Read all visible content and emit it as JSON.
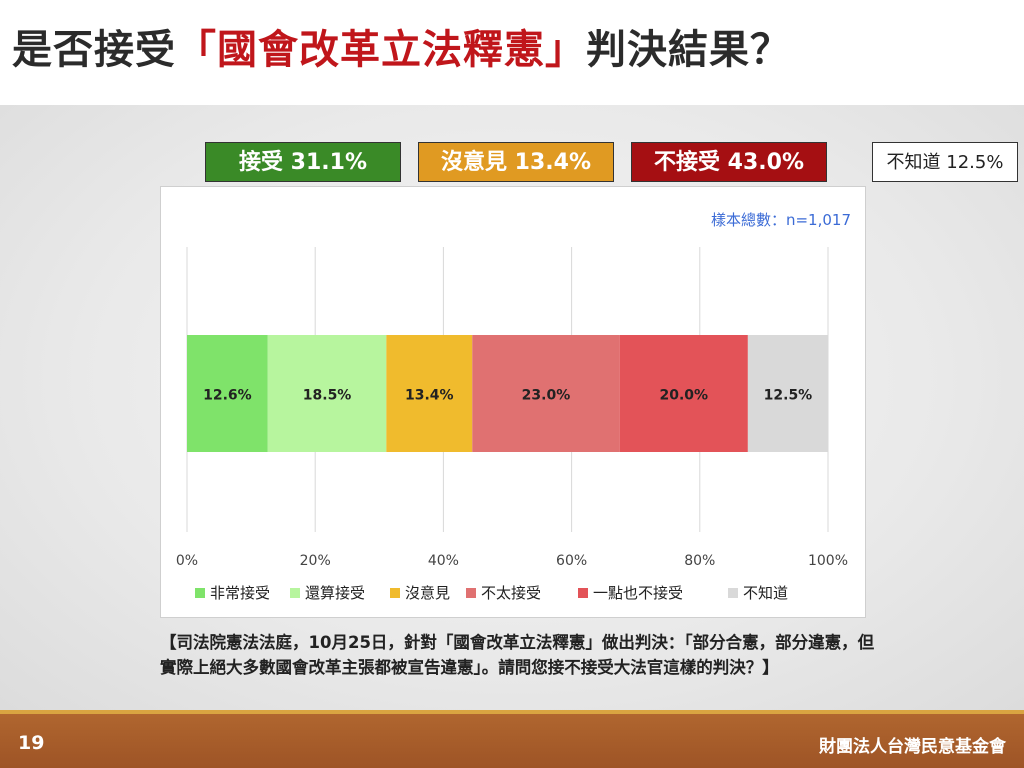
{
  "title": {
    "prefix": "是否接受",
    "highlight": "「國會改革立法釋憲」",
    "suffix": "判決結果？"
  },
  "summary": [
    {
      "label": "接受 31.1%",
      "color": "#3a8a27"
    },
    {
      "label": "沒意見 13.4%",
      "color": "#e09a22"
    },
    {
      "label": "不接受 43.0%",
      "color": "#a50f12"
    },
    {
      "label": "不知道 12.5%",
      "color": "#ffffff"
    }
  ],
  "chart_data": {
    "type": "bar",
    "orientation": "horizontal",
    "stacked": true,
    "note": "樣本總數：n=1,017",
    "xlim": [
      0,
      100
    ],
    "ticks": [
      "0%",
      "20%",
      "40%",
      "60%",
      "80%",
      "100%"
    ],
    "grid": true,
    "legend_position": "bottom",
    "series": [
      {
        "name": "非常接受",
        "value": 12.6,
        "label": "12.6%",
        "color": "#7fe36a"
      },
      {
        "name": "還算接受",
        "value": 18.5,
        "label": "18.5%",
        "color": "#b7f59e"
      },
      {
        "name": "沒意見",
        "value": 13.4,
        "label": "13.4%",
        "color": "#f0bb2d"
      },
      {
        "name": "不太接受",
        "value": 23.0,
        "label": "23.0%",
        "color": "#e07171"
      },
      {
        "name": "一點也不接受",
        "value": 20.0,
        "label": "20.0%",
        "color": "#e35358"
      },
      {
        "name": "不知道",
        "value": 12.5,
        "label": "12.5%",
        "color": "#d9d9d9"
      }
    ]
  },
  "question": "【司法院憲法法庭，10月25日，針對「國會改革立法釋憲」做出判決：「部分合憲，部分違憲，但實際上絕大多數國會改革主張都被宣告違憲」。請問您接不接受大法官這樣的判決？】",
  "footer": {
    "page": "19",
    "org": "財團法人台灣民意基金會"
  }
}
